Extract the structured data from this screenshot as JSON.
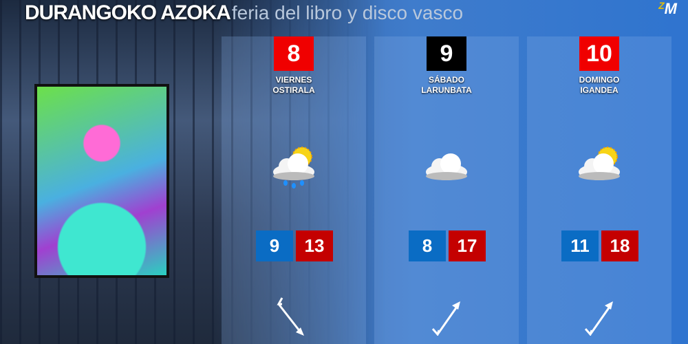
{
  "header": {
    "title": "DURANGOKO AZOKA",
    "subtitle": "feria del libro y disco vasco",
    "logo": "ZM"
  },
  "colors": {
    "min": "#0a6cc4",
    "max": "#c40000",
    "date_red": "#f00000",
    "date_black": "#000000"
  },
  "days": [
    {
      "date": "8",
      "name_es": "VIERNES",
      "name_eu": "OSTIRALA",
      "icon": "sun-cloud-rain-icon",
      "min": "9",
      "max": "13",
      "wind": "wind-southeast-icon",
      "date_color": "#f00000"
    },
    {
      "date": "9",
      "name_es": "SÁBADO",
      "name_eu": "LARUNBATA",
      "icon": "cloud-icon",
      "min": "8",
      "max": "17",
      "wind": "wind-northeast-icon",
      "date_color": "#000000"
    },
    {
      "date": "10",
      "name_es": "DOMINGO",
      "name_eu": "IGANDEA",
      "icon": "sun-cloud-icon",
      "min": "11",
      "max": "18",
      "wind": "wind-northeast-icon",
      "date_color": "#f00000"
    }
  ]
}
